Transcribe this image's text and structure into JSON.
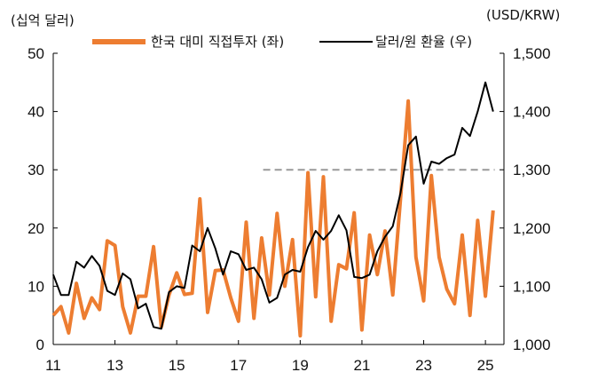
{
  "chart_data": {
    "type": "line",
    "left_unit": "(십억 달러)",
    "right_unit": "(USD/KRW)",
    "x_axis": {
      "min": 2011,
      "max": 2025.6,
      "ticks": [
        2011,
        2013,
        2015,
        2017,
        2019,
        2021,
        2023,
        2025
      ],
      "tick_labels": [
        "11",
        "13",
        "15",
        "17",
        "19",
        "21",
        "23",
        "25"
      ]
    },
    "y_left": {
      "min": 0,
      "max": 50,
      "ticks": [
        0,
        10,
        20,
        30,
        40,
        50
      ],
      "tick_labels": [
        "0",
        "10",
        "20",
        "30",
        "40",
        "50"
      ]
    },
    "y_right": {
      "min": 1000,
      "max": 1500,
      "ticks": [
        1000,
        1100,
        1200,
        1300,
        1400,
        1500
      ],
      "tick_labels": [
        "1,000",
        "1,100",
        "1,200",
        "1,300",
        "1,400",
        "1,500"
      ]
    },
    "reference_line": {
      "axis": "left",
      "value": 30,
      "x_start": 2017.8,
      "x_end": 2025.3,
      "color": "#999999"
    },
    "series": [
      {
        "name": "한국 대미 직접투자 (좌)",
        "axis": "left",
        "color": "#ED7D31",
        "x": [
          2011.0,
          2011.25,
          2011.5,
          2011.75,
          2012.0,
          2012.25,
          2012.5,
          2012.75,
          2013.0,
          2013.25,
          2013.5,
          2013.75,
          2014.0,
          2014.25,
          2014.5,
          2014.75,
          2015.0,
          2015.25,
          2015.5,
          2015.75,
          2016.0,
          2016.25,
          2016.5,
          2016.75,
          2017.0,
          2017.25,
          2017.5,
          2017.75,
          2018.0,
          2018.25,
          2018.5,
          2018.75,
          2019.0,
          2019.25,
          2019.5,
          2019.75,
          2020.0,
          2020.25,
          2020.5,
          2020.75,
          2021.0,
          2021.25,
          2021.5,
          2021.75,
          2022.0,
          2022.25,
          2022.5,
          2022.75,
          2023.0,
          2023.25,
          2023.5,
          2023.75,
          2024.0,
          2024.25,
          2024.5,
          2024.75,
          2025.0,
          2025.25
        ],
        "values": [
          5,
          6.5,
          2,
          10.5,
          4.5,
          8,
          6,
          17.8,
          17,
          6.5,
          2,
          8.3,
          8.3,
          16.8,
          3,
          8.5,
          12.3,
          8.6,
          8.8,
          25,
          5.5,
          12.7,
          12.8,
          8,
          4,
          21,
          4.5,
          18.3,
          8.5,
          22.5,
          10,
          18,
          1.5,
          29.5,
          8.2,
          28.8,
          4,
          13.7,
          13,
          22.6,
          2.5,
          18.8,
          12,
          19.5,
          8.5,
          25,
          41.8,
          15,
          7.5,
          29,
          15,
          9.5,
          7,
          18.8,
          5,
          21.3,
          8.3,
          23
        ]
      },
      {
        "name": "달러/원 환율 (우)",
        "axis": "right",
        "color": "#000000",
        "x": [
          2011.0,
          2011.25,
          2011.5,
          2011.75,
          2012.0,
          2012.25,
          2012.5,
          2012.75,
          2013.0,
          2013.25,
          2013.5,
          2013.75,
          2014.0,
          2014.25,
          2014.5,
          2014.75,
          2015.0,
          2015.25,
          2015.5,
          2015.75,
          2016.0,
          2016.25,
          2016.5,
          2016.75,
          2017.0,
          2017.25,
          2017.5,
          2017.75,
          2018.0,
          2018.25,
          2018.5,
          2018.75,
          2019.0,
          2019.25,
          2019.5,
          2019.75,
          2020.0,
          2020.25,
          2020.5,
          2020.75,
          2021.0,
          2021.25,
          2021.5,
          2021.75,
          2022.0,
          2022.25,
          2022.5,
          2022.75,
          2023.0,
          2023.25,
          2023.5,
          2023.75,
          2024.0,
          2024.25,
          2024.5,
          2024.75,
          2025.0,
          2025.25
        ],
        "values": [
          1120,
          1085,
          1085,
          1142,
          1132,
          1152,
          1135,
          1092,
          1085,
          1122,
          1112,
          1062,
          1070,
          1030,
          1027,
          1090,
          1100,
          1097,
          1170,
          1160,
          1200,
          1165,
          1120,
          1160,
          1155,
          1128,
          1132,
          1112,
          1072,
          1080,
          1120,
          1128,
          1125,
          1167,
          1195,
          1180,
          1195,
          1222,
          1196,
          1116,
          1114,
          1120,
          1160,
          1185,
          1203,
          1260,
          1342,
          1357,
          1276,
          1314,
          1310,
          1320,
          1326,
          1372,
          1358,
          1400,
          1450,
          1400
        ]
      }
    ]
  }
}
